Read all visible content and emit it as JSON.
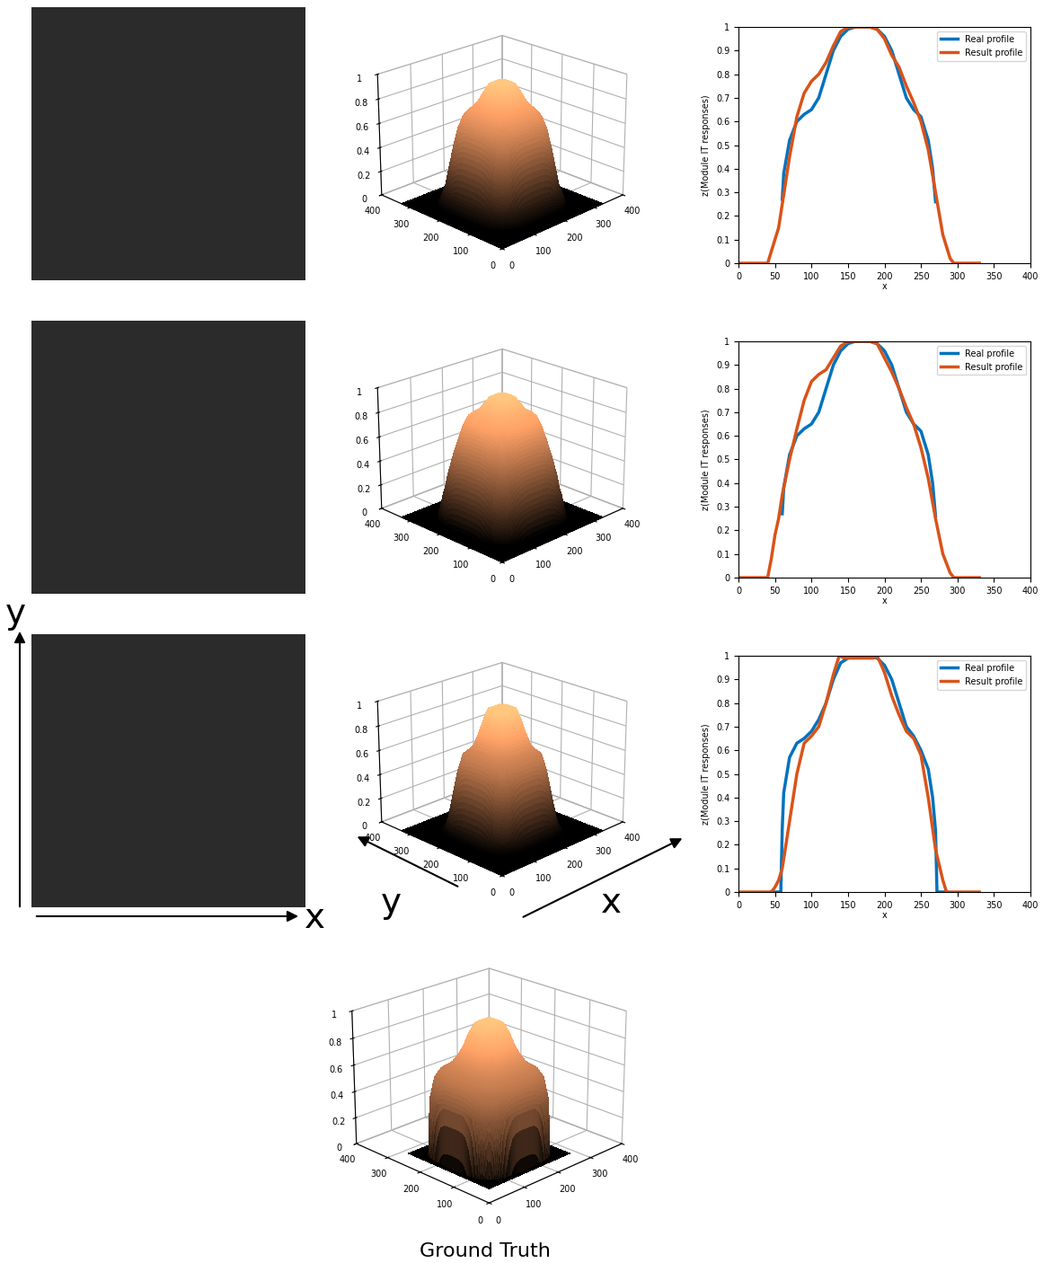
{
  "chart_data": [
    {
      "type": "image"
    },
    {
      "type": "surface",
      "x": [
        0,
        40,
        45,
        50,
        55,
        60,
        70,
        80,
        90,
        100,
        110,
        120,
        130,
        140,
        150,
        160,
        170,
        180,
        190,
        200,
        210,
        220,
        230,
        240,
        250,
        260,
        270,
        280,
        290,
        295,
        330
      ],
      "values": [
        0,
        0,
        0.05,
        0.1,
        0.15,
        0.25,
        0.45,
        0.62,
        0.72,
        0.77,
        0.8,
        0.85,
        0.92,
        0.98,
        1,
        1,
        1,
        1,
        0.99,
        0.95,
        0.88,
        0.83,
        0.75,
        0.68,
        0.6,
        0.48,
        0.3,
        0.12,
        0.02,
        0,
        0
      ],
      "xlim": [
        0,
        400
      ],
      "ylim": [
        0,
        400
      ],
      "zlim": [
        0,
        1
      ],
      "xticks": [
        0,
        100,
        200,
        300,
        400
      ],
      "yticks": [
        0,
        100,
        200,
        300,
        400
      ],
      "zticks": [
        0,
        0.2,
        0.4,
        0.6,
        0.8,
        1
      ]
    },
    {
      "type": "line",
      "xlabel": "x",
      "ylabel": "z(Module IT responses)",
      "legend": "upper right",
      "xlim": [
        0,
        400
      ],
      "ylim": [
        0,
        1
      ],
      "xticks": [
        0,
        50,
        100,
        150,
        200,
        250,
        300,
        350,
        400
      ],
      "yticks": [
        0,
        0.1,
        0.2,
        0.3,
        0.4,
        0.5,
        0.6,
        0.7,
        0.8,
        0.9,
        1
      ],
      "series": [
        {
          "name": "Real profile",
          "color": "#0072bd",
          "x": [
            60,
            62,
            70,
            80,
            90,
            100,
            110,
            120,
            130,
            140,
            150,
            160,
            170,
            180,
            190,
            200,
            210,
            220,
            230,
            240,
            250,
            260,
            266,
            270
          ],
          "values": [
            0.27,
            0.38,
            0.52,
            0.6,
            0.63,
            0.65,
            0.7,
            0.8,
            0.9,
            0.96,
            0.99,
            1,
            1,
            1,
            0.99,
            0.96,
            0.9,
            0.8,
            0.7,
            0.65,
            0.62,
            0.52,
            0.4,
            0.26
          ]
        },
        {
          "name": "Result profile",
          "color": "#d95319",
          "x": [
            0,
            40,
            45,
            50,
            55,
            60,
            70,
            80,
            90,
            100,
            110,
            120,
            130,
            140,
            150,
            160,
            170,
            180,
            190,
            200,
            210,
            220,
            230,
            240,
            250,
            260,
            270,
            280,
            290,
            295,
            330
          ],
          "values": [
            0,
            0,
            0.05,
            0.1,
            0.15,
            0.25,
            0.45,
            0.62,
            0.72,
            0.77,
            0.8,
            0.85,
            0.92,
            0.98,
            1,
            1,
            1,
            1,
            0.99,
            0.95,
            0.88,
            0.83,
            0.75,
            0.68,
            0.6,
            0.48,
            0.3,
            0.12,
            0.02,
            0,
            0
          ]
        }
      ]
    },
    {
      "type": "image"
    },
    {
      "type": "surface",
      "x": [
        0,
        40,
        45,
        50,
        55,
        60,
        70,
        80,
        90,
        100,
        110,
        120,
        130,
        140,
        150,
        160,
        170,
        180,
        190,
        200,
        210,
        220,
        230,
        240,
        250,
        260,
        270,
        280,
        290,
        295,
        330
      ],
      "values": [
        0,
        0,
        0.08,
        0.18,
        0.25,
        0.35,
        0.5,
        0.63,
        0.75,
        0.83,
        0.86,
        0.88,
        0.93,
        0.98,
        1,
        1,
        1,
        1,
        0.99,
        0.93,
        0.87,
        0.8,
        0.72,
        0.65,
        0.55,
        0.42,
        0.25,
        0.1,
        0.02,
        0,
        0
      ],
      "xlim": [
        0,
        400
      ],
      "ylim": [
        0,
        400
      ],
      "zlim": [
        0,
        1
      ],
      "xticks": [
        0,
        100,
        200,
        300,
        400
      ],
      "yticks": [
        0,
        100,
        200,
        300,
        400
      ],
      "zticks": [
        0,
        0.2,
        0.4,
        0.6,
        0.8,
        1
      ]
    },
    {
      "type": "line",
      "xlabel": "x",
      "ylabel": "z(Module IT responses)",
      "legend": "upper right",
      "xlim": [
        0,
        400
      ],
      "ylim": [
        0,
        1
      ],
      "xticks": [
        0,
        50,
        100,
        150,
        200,
        250,
        300,
        350,
        400
      ],
      "yticks": [
        0,
        0.1,
        0.2,
        0.3,
        0.4,
        0.5,
        0.6,
        0.7,
        0.8,
        0.9,
        1
      ],
      "series": [
        {
          "name": "Real profile",
          "color": "#0072bd",
          "x": [
            60,
            62,
            70,
            80,
            90,
            100,
            110,
            120,
            130,
            140,
            150,
            160,
            170,
            180,
            190,
            200,
            210,
            220,
            230,
            240,
            250,
            260,
            266,
            270
          ],
          "values": [
            0.27,
            0.38,
            0.52,
            0.6,
            0.63,
            0.65,
            0.7,
            0.8,
            0.9,
            0.96,
            0.99,
            1,
            1,
            1,
            0.99,
            0.96,
            0.9,
            0.8,
            0.7,
            0.65,
            0.62,
            0.52,
            0.4,
            0.26
          ]
        },
        {
          "name": "Result profile",
          "color": "#d95319",
          "x": [
            0,
            40,
            45,
            50,
            55,
            60,
            70,
            80,
            90,
            100,
            110,
            120,
            130,
            140,
            150,
            160,
            170,
            180,
            190,
            200,
            210,
            220,
            230,
            240,
            250,
            260,
            270,
            280,
            290,
            295,
            330
          ],
          "values": [
            0,
            0,
            0.08,
            0.18,
            0.25,
            0.35,
            0.5,
            0.63,
            0.75,
            0.83,
            0.86,
            0.88,
            0.93,
            0.98,
            1,
            1,
            1,
            1,
            0.99,
            0.93,
            0.87,
            0.8,
            0.72,
            0.65,
            0.55,
            0.42,
            0.25,
            0.1,
            0.02,
            0,
            0
          ]
        }
      ]
    },
    {
      "type": "image",
      "xlabel": "x",
      "ylabel": "y"
    },
    {
      "type": "surface",
      "xlabel": "x",
      "ylabel": "y",
      "x": [
        0,
        45,
        50,
        55,
        60,
        65,
        70,
        80,
        90,
        100,
        110,
        120,
        130,
        138,
        145,
        160,
        170,
        180,
        185,
        190,
        200,
        210,
        220,
        230,
        240,
        250,
        260,
        270,
        280,
        285,
        330
      ],
      "values": [
        0,
        0,
        0.02,
        0.05,
        0.1,
        0.2,
        0.3,
        0.5,
        0.63,
        0.66,
        0.7,
        0.8,
        0.92,
        1,
        0.99,
        0.99,
        0.99,
        0.99,
        0.99,
        1,
        0.93,
        0.83,
        0.75,
        0.68,
        0.65,
        0.58,
        0.4,
        0.18,
        0.05,
        0,
        0
      ],
      "xlim": [
        0,
        400
      ],
      "ylim": [
        0,
        400
      ],
      "zlim": [
        0,
        1
      ],
      "xticks": [
        0,
        100,
        200,
        300,
        400
      ],
      "yticks": [
        0,
        100,
        200,
        300,
        400
      ],
      "zticks": [
        0,
        0.2,
        0.4,
        0.6,
        0.8,
        1
      ]
    },
    {
      "type": "line",
      "xlabel": "x",
      "ylabel": "z(Module IT responses)",
      "legend": "upper right",
      "xlim": [
        0,
        400
      ],
      "ylim": [
        0,
        1
      ],
      "xticks": [
        0,
        50,
        100,
        150,
        200,
        250,
        300,
        350,
        400
      ],
      "yticks": [
        0,
        0.1,
        0.2,
        0.3,
        0.4,
        0.5,
        0.6,
        0.7,
        0.8,
        0.9,
        1
      ],
      "series": [
        {
          "name": "Real profile",
          "color": "#0072bd",
          "x": [
            45,
            58,
            60,
            62,
            70,
            80,
            90,
            100,
            110,
            120,
            130,
            140,
            150,
            160,
            170,
            180,
            190,
            200,
            210,
            220,
            230,
            240,
            250,
            260,
            266,
            270,
            272,
            285
          ],
          "values": [
            0,
            0,
            0.27,
            0.42,
            0.57,
            0.63,
            0.65,
            0.68,
            0.73,
            0.8,
            0.9,
            0.97,
            0.99,
            1,
            1,
            1,
            0.99,
            0.96,
            0.9,
            0.8,
            0.7,
            0.66,
            0.6,
            0.52,
            0.4,
            0.26,
            0,
            0
          ]
        },
        {
          "name": "Result profile",
          "color": "#d95319",
          "x": [
            0,
            45,
            50,
            55,
            60,
            65,
            70,
            80,
            90,
            100,
            110,
            120,
            130,
            138,
            145,
            160,
            170,
            180,
            185,
            190,
            200,
            210,
            220,
            230,
            240,
            250,
            260,
            270,
            280,
            285,
            330
          ],
          "values": [
            0,
            0,
            0.02,
            0.05,
            0.1,
            0.2,
            0.3,
            0.5,
            0.63,
            0.66,
            0.7,
            0.8,
            0.92,
            1,
            0.99,
            0.99,
            0.99,
            0.99,
            0.99,
            1,
            0.93,
            0.83,
            0.75,
            0.68,
            0.65,
            0.58,
            0.4,
            0.18,
            0.05,
            0,
            0
          ]
        }
      ]
    },
    {
      "type": "surface",
      "title": "Ground Truth",
      "x": [
        45,
        58,
        60,
        62,
        70,
        80,
        90,
        100,
        110,
        120,
        130,
        140,
        150,
        160,
        170,
        180,
        190,
        200,
        210,
        220,
        230,
        240,
        250,
        260,
        266,
        270,
        272,
        285
      ],
      "values": [
        0,
        0,
        0.27,
        0.42,
        0.57,
        0.63,
        0.65,
        0.68,
        0.73,
        0.8,
        0.9,
        0.97,
        0.99,
        1,
        1,
        1,
        0.99,
        0.96,
        0.9,
        0.8,
        0.7,
        0.66,
        0.6,
        0.52,
        0.4,
        0.26,
        0,
        0
      ],
      "xlim": [
        0,
        400
      ],
      "ylim": [
        0,
        400
      ],
      "zlim": [
        0,
        1
      ],
      "xticks": [
        0,
        100,
        200,
        300,
        400
      ],
      "yticks": [
        0,
        100,
        200,
        300,
        400
      ],
      "zticks": [
        0,
        0.2,
        0.4,
        0.6,
        0.8,
        1
      ]
    }
  ]
}
